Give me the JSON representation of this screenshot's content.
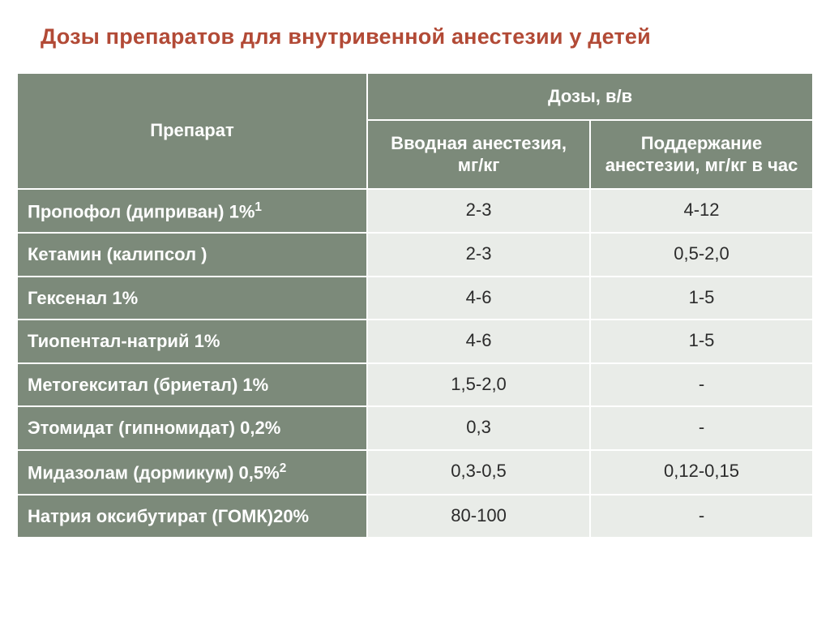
{
  "title": "Дозы препаратов для внутривенной анестезии у детей",
  "colors": {
    "title": "#b24a36",
    "header_bg": "#7c8a7a",
    "header_text": "#ffffff",
    "cell_bg": "#e9ece8",
    "cell_text": "#2b2b2b",
    "border": "#ffffff",
    "page_bg": "#ffffff"
  },
  "typography": {
    "title_fontsize": 27,
    "title_weight": "bold",
    "header_fontsize": 22,
    "cell_fontsize": 22,
    "label_weight": "bold",
    "font_family": "Arial"
  },
  "table": {
    "type": "table",
    "column_widths_pct": [
      44,
      28,
      28
    ],
    "header_group": "Дозы, в/в",
    "columns": [
      "Препарат",
      "Вводная анестезия, мг/кг",
      "Поддержание анестезии, мг/кг в час"
    ],
    "rows": [
      {
        "label": "Пропофол (диприван) 1%",
        "sup": "1",
        "induction": "2-3",
        "maintenance": "4-12"
      },
      {
        "label": "Кетамин (калипсол )",
        "sup": "",
        "induction": "2-3",
        "maintenance": "0,5-2,0"
      },
      {
        "label": "Гексенал 1%",
        "sup": "",
        "induction": "4-6",
        "maintenance": "1-5"
      },
      {
        "label": "Тиопентал-натрий 1%",
        "sup": "",
        "induction": "4-6",
        "maintenance": "1-5"
      },
      {
        "label": "Метогекситал (бриетал) 1%",
        "sup": "",
        "induction": "1,5-2,0",
        "maintenance": "-"
      },
      {
        "label": "Этомидат (гипномидат) 0,2%",
        "sup": "",
        "induction": "0,3",
        "maintenance": "-"
      },
      {
        "label": "Мидазолам (дормикум) 0,5%",
        "sup": "2",
        "induction": "0,3-0,5",
        "maintenance": "0,12-0,15"
      },
      {
        "label": "Натрия оксибутират (ГОМК)20%",
        "sup": "",
        "induction": "80-100",
        "maintenance": "-"
      }
    ]
  }
}
